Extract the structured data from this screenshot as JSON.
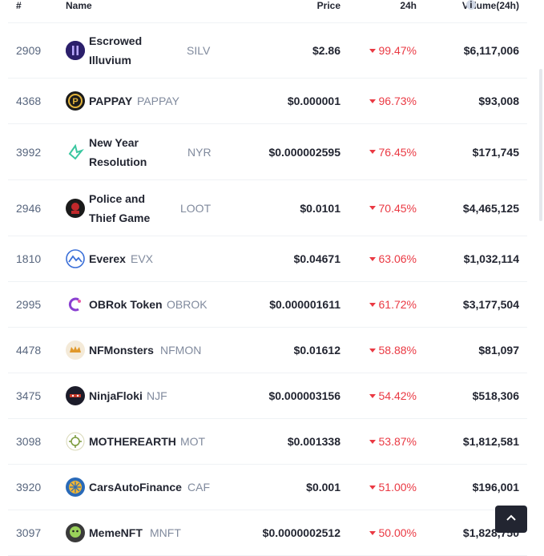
{
  "header": {
    "rank": "#",
    "name": "Name",
    "price": "Price",
    "change": "24h",
    "volume": "Volume(24h)",
    "info_icon": "i"
  },
  "rows": [
    {
      "rank": "2909",
      "name": "Escrowed Illuvium",
      "symbol": "SILV",
      "price": "$2.86",
      "change": "99.47%",
      "volume": "$6,117,006",
      "icon": "illuvium-logo-icon"
    },
    {
      "rank": "4368",
      "name": "PAPPAY",
      "symbol": "PAPPAY",
      "price": "$0.000001",
      "change": "96.73%",
      "volume": "$93,008",
      "icon": "pappay-logo-icon"
    },
    {
      "rank": "3992",
      "name": "New Year Resolution",
      "symbol": "NYR",
      "price": "$0.000002595",
      "change": "76.45%",
      "volume": "$171,745",
      "icon": "nyr-logo-icon"
    },
    {
      "rank": "2946",
      "name": "Police and Thief Game",
      "symbol": "LOOT",
      "price": "$0.0101",
      "change": "70.45%",
      "volume": "$4,465,125",
      "icon": "loot-logo-icon"
    },
    {
      "rank": "1810",
      "name": "Everex",
      "symbol": "EVX",
      "price": "$0.04671",
      "change": "63.06%",
      "volume": "$1,032,114",
      "icon": "everex-logo-icon"
    },
    {
      "rank": "2995",
      "name": "OBRok Token",
      "symbol": "OBROK",
      "price": "$0.000001611",
      "change": "61.72%",
      "volume": "$3,177,504",
      "icon": "obrok-logo-icon"
    },
    {
      "rank": "4478",
      "name": "NFMonsters",
      "symbol": "NFMON",
      "price": "$0.01612",
      "change": "58.88%",
      "volume": "$81,097",
      "icon": "nfmonsters-logo-icon"
    },
    {
      "rank": "3475",
      "name": "NinjaFloki",
      "symbol": "NJF",
      "price": "$0.000003156",
      "change": "54.42%",
      "volume": "$518,306",
      "icon": "ninjafloki-logo-icon"
    },
    {
      "rank": "3098",
      "name": "MOTHEREARTH",
      "symbol": "MOT",
      "price": "$0.001338",
      "change": "53.87%",
      "volume": "$1,812,581",
      "icon": "motherearth-logo-icon"
    },
    {
      "rank": "3920",
      "name": "CarsAutoFinance",
      "symbol": "CAF",
      "price": "$0.001",
      "change": "51.00%",
      "volume": "$196,001",
      "icon": "caf-logo-icon"
    },
    {
      "rank": "3097",
      "name": "MemeNFT",
      "symbol": "MNFT",
      "price": "$0.0000002512",
      "change": "50.00%",
      "volume": "$1,828,750",
      "icon": "memenft-logo-icon"
    }
  ],
  "colors": {
    "negative": "#ea3943",
    "muted": "#808a9d",
    "text": "#222531"
  },
  "back_to_top_icon": "chevron-up-icon"
}
